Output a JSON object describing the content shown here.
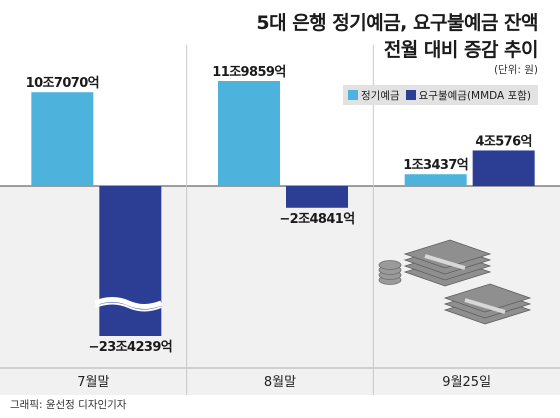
{
  "title_line1": "5대 은행 정기예금, 요구불예금 잔액",
  "title_line2": "전월 대비 증감 추이",
  "unit": "(단위: 원)",
  "credit": "그래픽: 윤선정 디자인기자",
  "colors": {
    "deposit": "#4eb3dc",
    "demand": "#2b3e94",
    "background_lower": "#f1f1f1"
  },
  "chart_data": {
    "type": "bar",
    "categories": [
      "7월말",
      "8월말",
      "9월25일"
    ],
    "series": [
      {
        "name": "정기예금",
        "values": [
          107070,
          119859,
          13437
        ],
        "labels": [
          "10조7070억",
          "11조9859억",
          "1조3437억"
        ]
      },
      {
        "name": "요구불예금(MMDA 포함)",
        "values": [
          -234239,
          -24841,
          40576
        ],
        "labels": [
          "−23조4239억",
          "−2조4841억",
          "4조576억"
        ]
      }
    ],
    "value_unit": "억 원",
    "axis_break": "요구불예금 7월말 막대 축 생략 표시",
    "legend_position": "top-right"
  }
}
